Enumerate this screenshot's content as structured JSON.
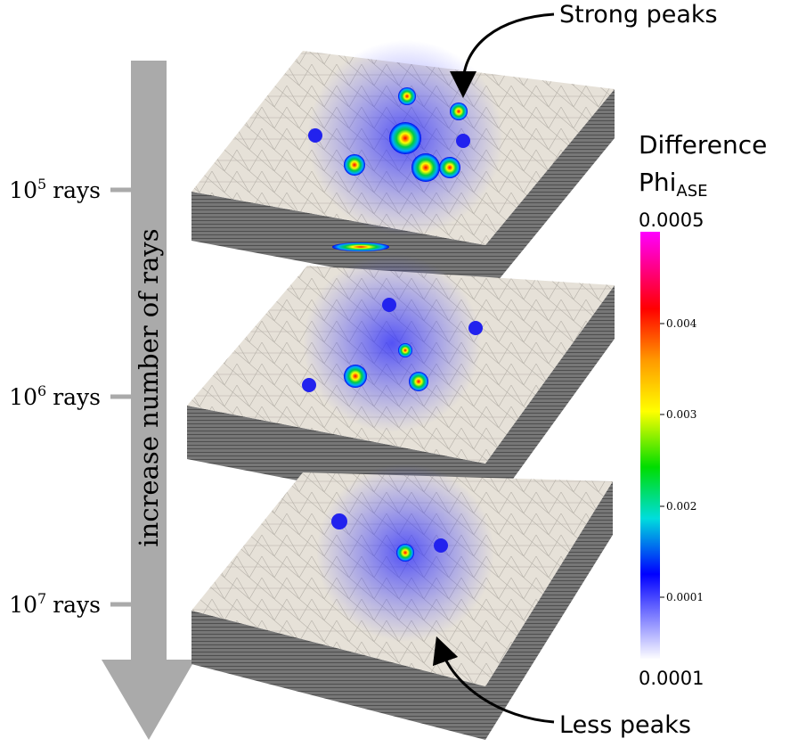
{
  "annotations": {
    "top": "Strong peaks",
    "bottom": "Less peaks"
  },
  "axis_arrow": {
    "label": "increase number of rays"
  },
  "levels": [
    {
      "base": "10",
      "exponent": "5",
      "unit": "rays"
    },
    {
      "base": "10",
      "exponent": "6",
      "unit": "rays"
    },
    {
      "base": "10",
      "exponent": "7",
      "unit": "rays"
    }
  ],
  "colorbar": {
    "title": "Difference",
    "quantity": "Phi",
    "subscript": "ASE",
    "max_label": "0.0005",
    "min_label": "0.0001",
    "tick_labels": [
      "0.004",
      "0.003",
      "0.002",
      "0.0001"
    ]
  }
}
